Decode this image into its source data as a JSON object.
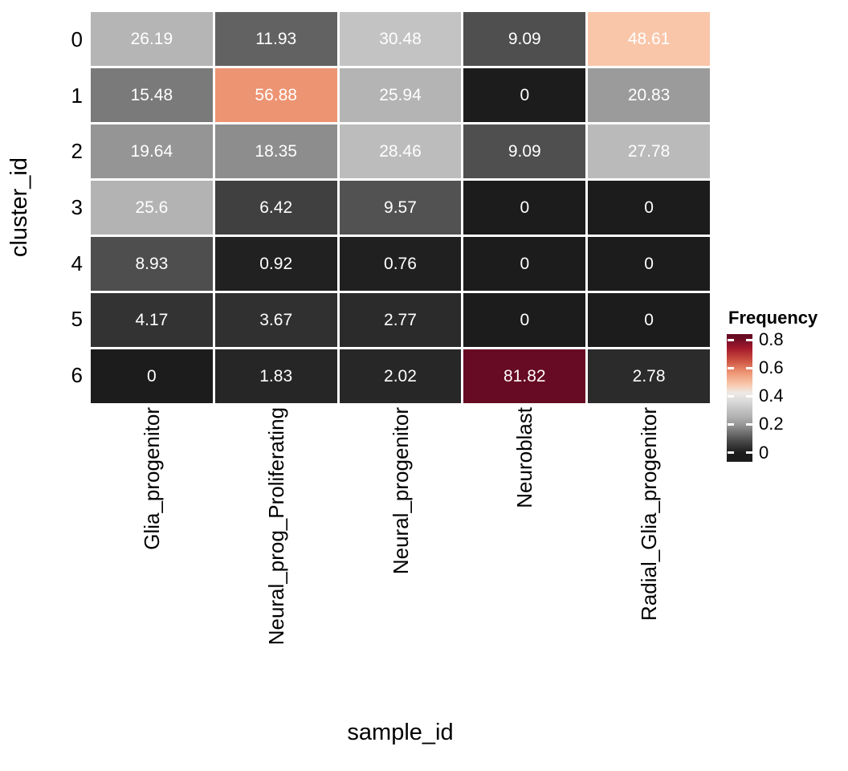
{
  "chart_data": {
    "type": "heatmap",
    "xlabel": "sample_id",
    "ylabel": "cluster_id",
    "x_categories": [
      "Glia_progenitor",
      "Neural_prog_Proliferating",
      "Neural_progenitor",
      "Neuroblast",
      "Radial_Glia_progenitor"
    ],
    "y_categories": [
      "0",
      "1",
      "2",
      "3",
      "4",
      "5",
      "6"
    ],
    "values_percent": [
      [
        26.19,
        11.93,
        30.48,
        9.09,
        48.61
      ],
      [
        15.48,
        56.88,
        25.94,
        0,
        20.83
      ],
      [
        19.64,
        18.35,
        28.46,
        9.09,
        27.78
      ],
      [
        25.6,
        6.42,
        9.57,
        0,
        0
      ],
      [
        8.93,
        0.92,
        0.76,
        0,
        0
      ],
      [
        4.17,
        3.67,
        2.77,
        0,
        0
      ],
      [
        0,
        1.83,
        2.02,
        81.82,
        2.78
      ]
    ],
    "cell_text_color": "#ffffff",
    "grid_gap_color": "#ffffff",
    "legend": {
      "title": "Frequency",
      "ticks": [
        "0.8",
        "0.6",
        "0.4",
        "0.2",
        "0"
      ],
      "tick_values": [
        0.8,
        0.6,
        0.4,
        0.2,
        0
      ],
      "domain_max": 0.8182,
      "bar_value_top": 0.84,
      "bar_value_bottom": -0.065
    },
    "colormap_stops": [
      [
        0.0,
        "#1c1c1c"
      ],
      [
        0.11,
        "#4e4e4e"
      ],
      [
        0.19,
        "#7a7a7a"
      ],
      [
        0.24,
        "#959595"
      ],
      [
        0.31,
        "#b2b2b2"
      ],
      [
        0.37,
        "#c2c2c2"
      ],
      [
        0.45,
        "#dcdcdc"
      ],
      [
        0.52,
        "#efe9e4"
      ],
      [
        0.59,
        "#f9c8ac"
      ],
      [
        0.7,
        "#ec9270"
      ],
      [
        0.8,
        "#cc5140"
      ],
      [
        0.9,
        "#a51a2c"
      ],
      [
        1.0,
        "#670a23"
      ]
    ],
    "legend_position": "right",
    "axis_text_color": "#000000"
  }
}
